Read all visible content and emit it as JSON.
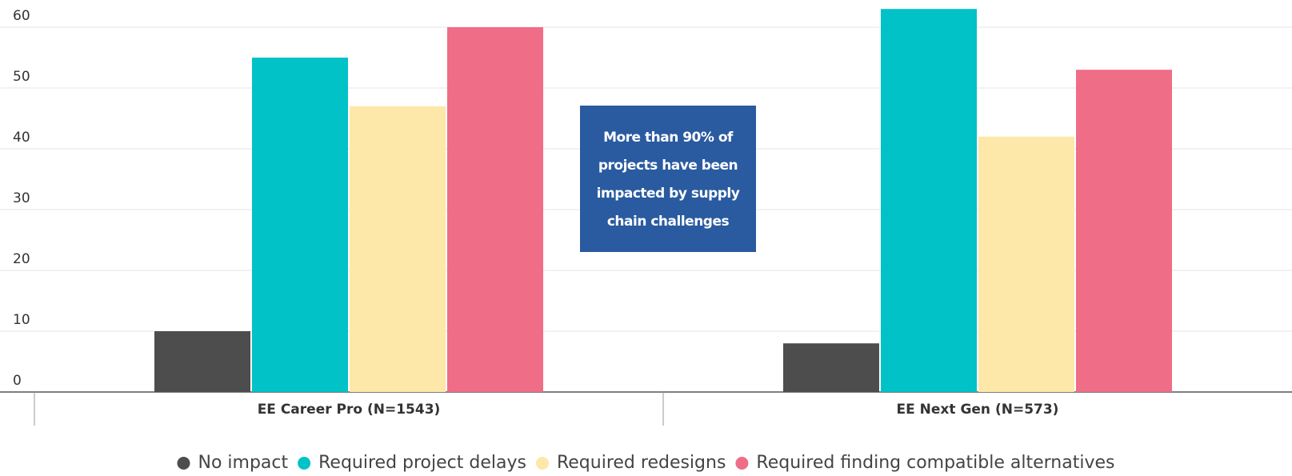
{
  "chart_data": {
    "type": "bar",
    "categories": [
      "EE Career Pro (N=1543)",
      "EE Next Gen (N=573)"
    ],
    "series": [
      {
        "name": "No impact",
        "color": "#4d4d4d",
        "values": [
          10,
          8
        ]
      },
      {
        "name": "Required project delays",
        "color": "#00c2c7",
        "values": [
          55,
          63
        ]
      },
      {
        "name": "Required redesigns",
        "color": "#fde7a9",
        "values": [
          47,
          42
        ]
      },
      {
        "name": "Required finding compatible alternatives",
        "color": "#ef6d86",
        "values": [
          60,
          53
        ]
      }
    ],
    "ylim": [
      0,
      64
    ],
    "yticks": [
      0,
      10,
      20,
      30,
      40,
      50,
      60
    ],
    "grid": true,
    "legend": "bottom",
    "annotation": {
      "lines": [
        "More than 90% of",
        "projects have been",
        "impacted by supply",
        "chain challenges"
      ],
      "color": "#2a5ba0"
    }
  }
}
